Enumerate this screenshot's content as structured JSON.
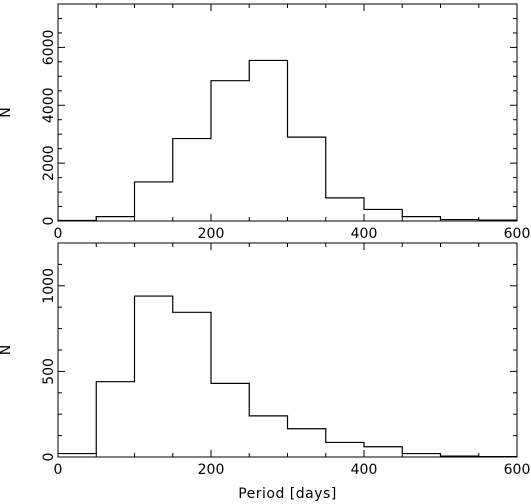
{
  "chart_data": [
    {
      "type": "bar",
      "histogram": true,
      "xlabel": "",
      "ylabel": "N",
      "xlim": [
        0,
        600
      ],
      "ylim": [
        0,
        7500
      ],
      "xticks": [
        0,
        200,
        400,
        600
      ],
      "yticks": [
        0,
        2000,
        4000,
        6000
      ],
      "bin_edges": [
        0,
        50,
        100,
        150,
        200,
        250,
        300,
        350,
        400,
        450,
        500,
        550,
        600
      ],
      "values": [
        20,
        150,
        1350,
        2850,
        4850,
        5550,
        2900,
        800,
        400,
        150,
        50,
        30
      ]
    },
    {
      "type": "bar",
      "histogram": true,
      "xlabel": "Period [days]",
      "ylabel": "N",
      "xlim": [
        0,
        600
      ],
      "ylim": [
        0,
        1250
      ],
      "xticks": [
        0,
        200,
        400,
        600
      ],
      "yticks": [
        0,
        500,
        1000
      ],
      "bin_edges": [
        0,
        50,
        100,
        150,
        200,
        250,
        300,
        350,
        400,
        450,
        500,
        550,
        600
      ],
      "values": [
        20,
        440,
        940,
        845,
        430,
        240,
        165,
        85,
        60,
        20,
        5,
        2
      ]
    }
  ]
}
